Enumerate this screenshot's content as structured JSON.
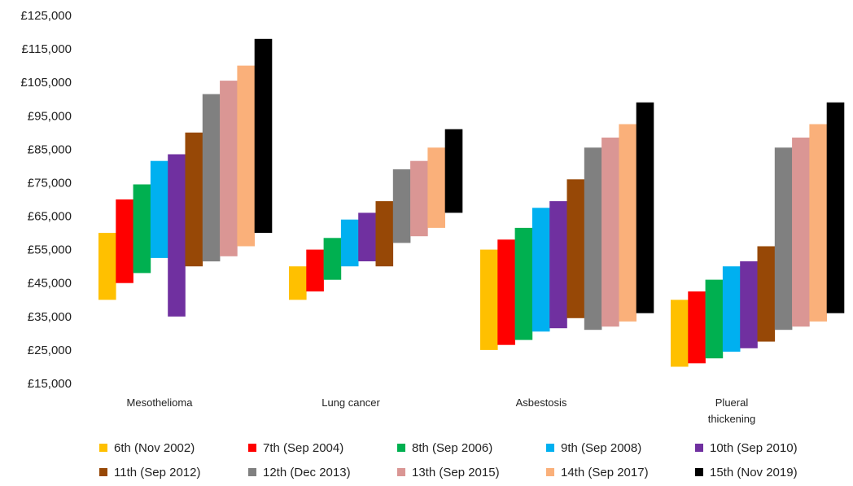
{
  "chart_data": {
    "type": "floating-bar",
    "title": "",
    "xlabel": "",
    "ylabel": "",
    "ylim": [
      15000,
      125000
    ],
    "yticks": [
      15000,
      25000,
      35000,
      45000,
      55000,
      65000,
      75000,
      85000,
      95000,
      105000,
      115000,
      125000
    ],
    "ytick_labels": [
      "£15,000",
      "£25,000",
      "£35,000",
      "£45,000",
      "£55,000",
      "£65,000",
      "£75,000",
      "£85,000",
      "£95,000",
      "£105,000",
      "£115,000",
      "£125,000"
    ],
    "categories": [
      {
        "lines": [
          "Mesothelioma"
        ]
      },
      {
        "lines": [
          "Lung cancer"
        ]
      },
      {
        "lines": [
          "Asbestosis"
        ]
      },
      {
        "lines": [
          "Plueral",
          "thickening"
        ]
      }
    ],
    "grid": false,
    "legend_position": "bottom",
    "series": [
      {
        "name": "6th (Nov 2002)",
        "color": "#FFC000",
        "ranges": [
          [
            40000,
            60000
          ],
          [
            40000,
            50000
          ],
          [
            25000,
            55000
          ],
          [
            20000,
            40000
          ]
        ]
      },
      {
        "name": "7th (Sep 2004)",
        "color": "#FF0000",
        "ranges": [
          [
            45000,
            70000
          ],
          [
            42500,
            55000
          ],
          [
            26500,
            58000
          ],
          [
            21000,
            42500
          ]
        ]
      },
      {
        "name": "8th (Sep 2006)",
        "color": "#00B050",
        "ranges": [
          [
            48000,
            74500
          ],
          [
            46000,
            58500
          ],
          [
            28000,
            61500
          ],
          [
            22500,
            46000
          ]
        ]
      },
      {
        "name": "9th (Sep 2008)",
        "color": "#00B0F0",
        "ranges": [
          [
            52500,
            81500
          ],
          [
            50000,
            64000
          ],
          [
            30500,
            67500
          ],
          [
            24500,
            50000
          ]
        ]
      },
      {
        "name": "10th (Sep 2010)",
        "color": "#7030A0",
        "ranges": [
          [
            35000,
            83500
          ],
          [
            51500,
            66000
          ],
          [
            31500,
            69500
          ],
          [
            25500,
            51500
          ]
        ]
      },
      {
        "name": "11th (Sep 2012)",
        "color": "#974806",
        "ranges": [
          [
            50000,
            90000
          ],
          [
            50000,
            69500
          ],
          [
            34500,
            76000
          ],
          [
            27500,
            56000
          ]
        ]
      },
      {
        "name": "12th (Dec 2013)",
        "color": "#808080",
        "ranges": [
          [
            51500,
            101500
          ],
          [
            57000,
            79000
          ],
          [
            31000,
            85500
          ],
          [
            31000,
            85500
          ]
        ]
      },
      {
        "name": "13th (Sep 2015)",
        "color": "#DA9694",
        "ranges": [
          [
            53000,
            105500
          ],
          [
            59000,
            81500
          ],
          [
            32000,
            88500
          ],
          [
            32000,
            88500
          ]
        ]
      },
      {
        "name": "14th (Sep 2017)",
        "color": "#FAB07A",
        "ranges": [
          [
            56000,
            110000
          ],
          [
            61500,
            85500
          ],
          [
            33500,
            92500
          ],
          [
            33500,
            92500
          ]
        ]
      },
      {
        "name": "15th (Nov 2019)",
        "color": "#000000",
        "ranges": [
          [
            60000,
            118000
          ],
          [
            66000,
            91000
          ],
          [
            36000,
            99000
          ],
          [
            36000,
            99000
          ]
        ]
      }
    ]
  }
}
